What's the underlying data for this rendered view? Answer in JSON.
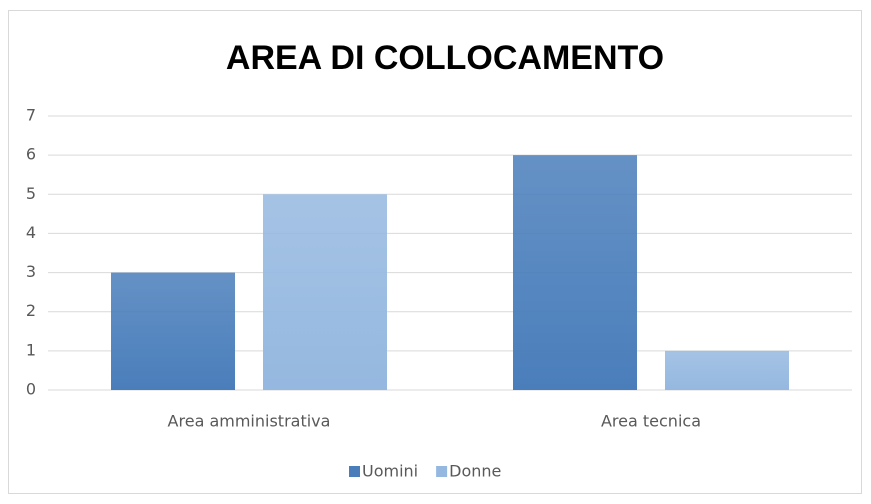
{
  "chart_data": {
    "type": "bar",
    "title": "AREA DI COLLOCAMENTO",
    "categories": [
      "Area amministrativa",
      "Area tecnica"
    ],
    "series": [
      {
        "name": "Uomini",
        "color": "#4a7ebb",
        "values": [
          3,
          6
        ]
      },
      {
        "name": "Donne",
        "color": "#95b8e0",
        "values": [
          5,
          1
        ]
      }
    ],
    "ylim": [
      0,
      7
    ],
    "yticks": [
      0,
      1,
      2,
      3,
      4,
      5,
      6,
      7
    ],
    "grid": true,
    "legend": "bottom"
  }
}
